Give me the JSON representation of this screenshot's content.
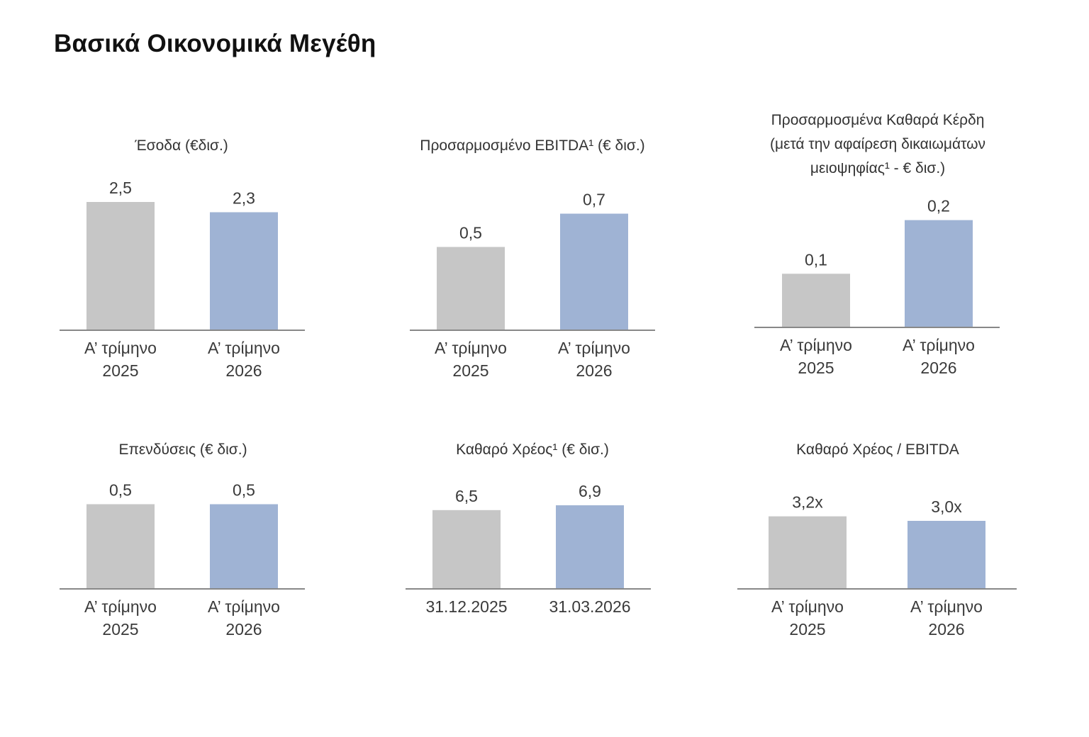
{
  "page": {
    "title": "Βασικά Οικονομικά Μεγέθη"
  },
  "colors": {
    "prior": "#c6c6c6",
    "current": "#9fb3d4",
    "axis": "#888888"
  },
  "chart_data": [
    {
      "type": "bar",
      "title": [
        "Έσοδα (€δισ.)"
      ],
      "categories": [
        [
          "Α’ τρίμηνο",
          "2025"
        ],
        [
          "Α’ τρίμηνο",
          "2026"
        ]
      ],
      "values": [
        2.5,
        2.3
      ],
      "data_labels": [
        "2,5",
        "2,3"
      ]
    },
    {
      "type": "bar",
      "title": [
        "Προσαρμοσμένο EBITDA¹ (€ δισ.)"
      ],
      "categories": [
        [
          "Α’ τρίμηνο",
          "2025"
        ],
        [
          "Α’ τρίμηνο",
          "2026"
        ]
      ],
      "values": [
        0.5,
        0.7
      ],
      "data_labels": [
        "0,5",
        "0,7"
      ]
    },
    {
      "type": "bar",
      "title": [
        "Προσαρμοσμένα Καθαρά Κέρδη",
        "(μετά την αφαίρεση δικαιωμάτων",
        "μειοψηφίας¹ - € δισ.)"
      ],
      "categories": [
        [
          "Α’ τρίμηνο",
          "2025"
        ],
        [
          "Α’ τρίμηνο",
          "2026"
        ]
      ],
      "values": [
        0.1,
        0.2
      ],
      "data_labels": [
        "0,1",
        "0,2"
      ]
    },
    {
      "type": "bar",
      "title": [
        "Επενδύσεις (€ δισ.)"
      ],
      "categories": [
        [
          "Α’ τρίμηνο",
          "2025"
        ],
        [
          "Α’ τρίμηνο",
          "2026"
        ]
      ],
      "values": [
        0.5,
        0.5
      ],
      "data_labels": [
        "0,5",
        "0,5"
      ]
    },
    {
      "type": "bar",
      "title": [
        "Καθαρό Χρέος¹ (€ δισ.)"
      ],
      "categories": [
        [
          "31.12.2025"
        ],
        [
          "31.03.2026"
        ]
      ],
      "values": [
        6.5,
        6.9
      ],
      "data_labels": [
        "6,5",
        "6,9"
      ]
    },
    {
      "type": "bar",
      "title": [
        "Καθαρό Χρέος / EBITDA"
      ],
      "categories": [
        [
          "Α’ τρίμηνο",
          "2025"
        ],
        [
          "Α’ τρίμηνο",
          "2026"
        ]
      ],
      "values": [
        3.2,
        3.0
      ],
      "data_labels": [
        "3,2x",
        "3,0x"
      ]
    }
  ]
}
